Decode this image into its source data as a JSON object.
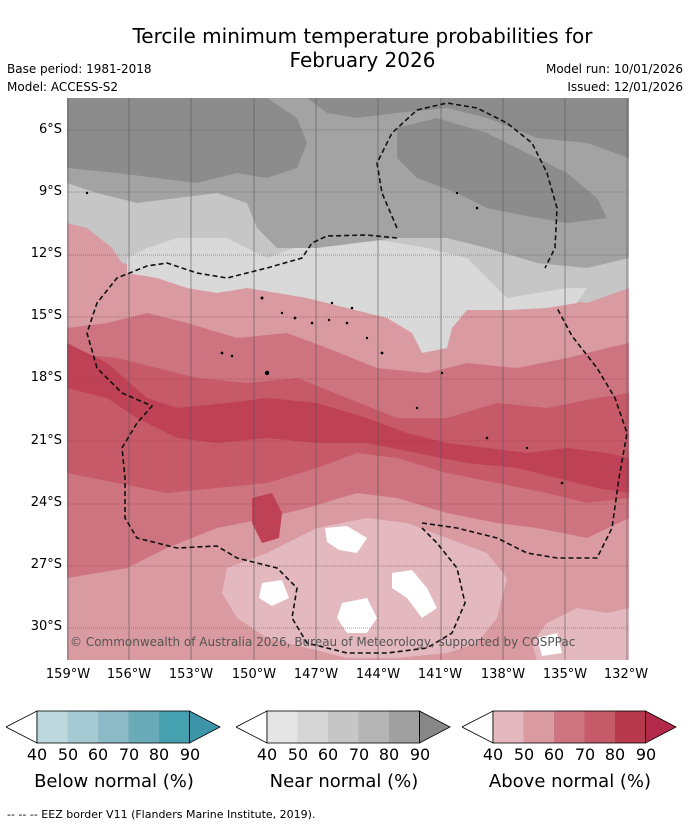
{
  "header": {
    "title_line1": "Tercile minimum temperature probabilities for",
    "title_line2": "February 2026",
    "base_period": "Base period: 1981-2018",
    "model": "Model: ACCESS-S2",
    "model_run": "Model run: 10/01/2026",
    "issued": "Issued: 12/01/2026"
  },
  "map": {
    "lat_labels": [
      "6°S",
      "9°S",
      "12°S",
      "15°S",
      "18°S",
      "21°S",
      "24°S",
      "27°S",
      "30°S"
    ],
    "lon_labels": [
      "159°W",
      "156°W",
      "153°W",
      "150°W",
      "147°W",
      "144°W",
      "141°W",
      "138°W",
      "135°W",
      "132°W"
    ],
    "copyright": "© Commonwealth of Australia 2026, Bureau of Meteorology, supported by COSPPac",
    "colors": {
      "near_dark": "#8c8c8c",
      "near_mid": "#a3a3a3",
      "near_light": "#c6c6c6",
      "near_lightest": "#d9d9d9",
      "above_40": "#e3b9bf",
      "above_50": "#d99aa2",
      "above_60": "#cd7480",
      "above_70": "#c75a68",
      "above_80": "#be4155"
    }
  },
  "legend": {
    "below": {
      "label": "Below normal (%)",
      "ticks": [
        "40",
        "50",
        "60",
        "70",
        "80",
        "90"
      ],
      "colors": [
        "#bed8df",
        "#a6cad3",
        "#8cbac6",
        "#6aaab9",
        "#45a0b0",
        "#3c95a8"
      ]
    },
    "near": {
      "label": "Near normal (%)",
      "ticks": [
        "40",
        "50",
        "60",
        "70",
        "80",
        "90"
      ],
      "colors": [
        "#e5e5e5",
        "#d6d6d6",
        "#c6c6c6",
        "#b4b4b4",
        "#a0a0a0",
        "#888888"
      ]
    },
    "above": {
      "label": "Above normal (%)",
      "ticks": [
        "40",
        "50",
        "60",
        "70",
        "80",
        "90"
      ],
      "colors": [
        "#e3b9bf",
        "#d99aa2",
        "#cd7480",
        "#c55a69",
        "#b8394e",
        "#b3294a"
      ]
    }
  },
  "footer": "--  --  -- EEZ border V11 (Flanders Marine Institute, 2019)."
}
